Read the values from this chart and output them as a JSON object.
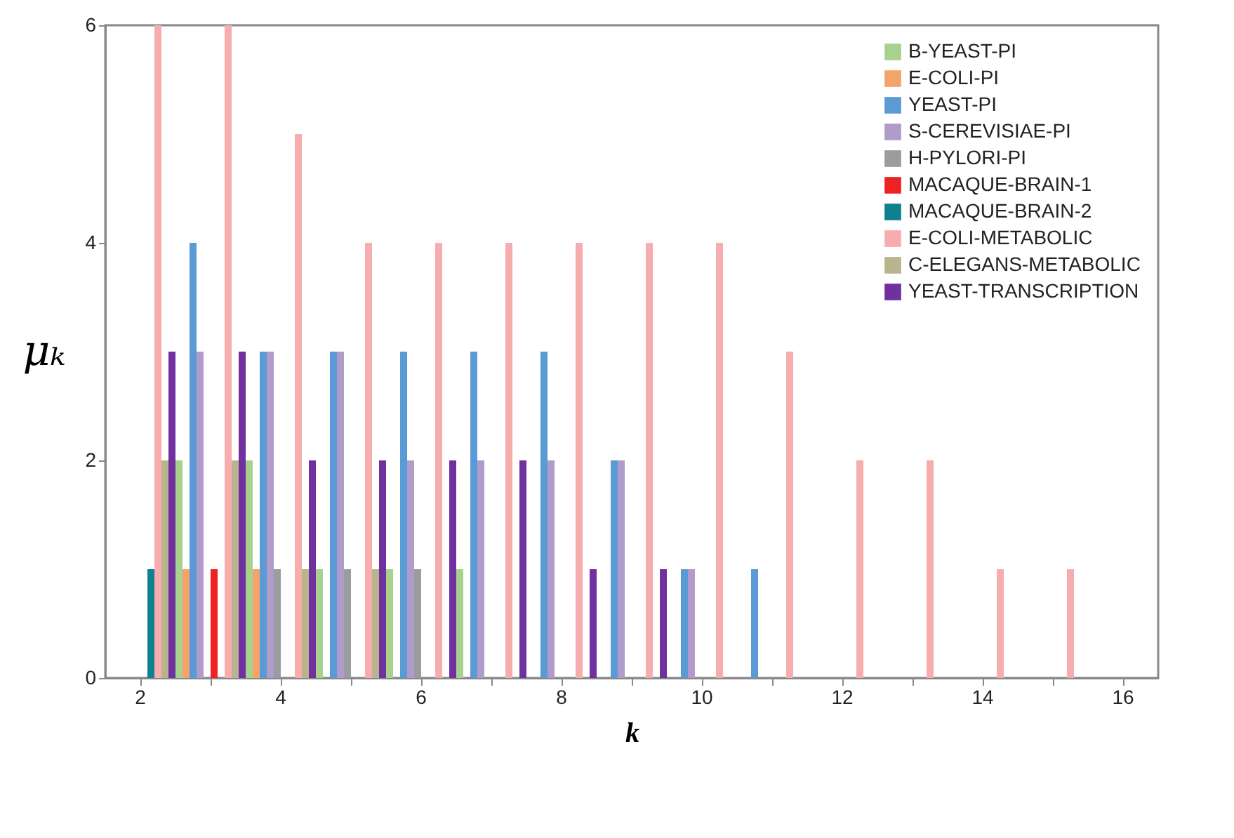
{
  "chart_data": {
    "type": "bar",
    "xlabel": "k",
    "ylabel": "μₖ",
    "categories": [
      "2",
      null,
      "4",
      null,
      "6",
      null,
      "8",
      null,
      "10",
      null,
      "12",
      null,
      "14",
      null,
      "16"
    ],
    "ylim": [
      0,
      6
    ],
    "yticks": [
      0,
      2,
      4,
      6
    ],
    "grid": false,
    "legend": "top right",
    "series": [
      {
        "name": "B-YEAST-PI",
        "color": "#a9d18e",
        "values": [
          null,
          2,
          2,
          1,
          1,
          1,
          null,
          null,
          null,
          null,
          null,
          null,
          null,
          null,
          null
        ]
      },
      {
        "name": "E-COLI-PI",
        "color": "#f4a46a",
        "values": [
          null,
          1,
          1,
          null,
          null,
          null,
          null,
          null,
          null,
          null,
          null,
          null,
          null,
          null,
          null
        ]
      },
      {
        "name": "YEAST-PI",
        "color": "#5b9bd5",
        "values": [
          null,
          4,
          3,
          3,
          3,
          3,
          3,
          2,
          1,
          1,
          null,
          null,
          null,
          null,
          null
        ]
      },
      {
        "name": "S-CEREVISIAE-PI",
        "color": "#b09bcb",
        "values": [
          null,
          3,
          3,
          3,
          2,
          2,
          2,
          2,
          1,
          null,
          null,
          null,
          null,
          null,
          null
        ]
      },
      {
        "name": "H-PYLORI-PI",
        "color": "#9a9c9e",
        "values": [
          null,
          null,
          1,
          1,
          1,
          null,
          null,
          null,
          null,
          null,
          null,
          null,
          null,
          null,
          null
        ]
      },
      {
        "name": "MACAQUE-BRAIN-1",
        "color": "#ee2222",
        "values": [
          null,
          1,
          null,
          null,
          null,
          null,
          null,
          null,
          null,
          null,
          null,
          null,
          null,
          null,
          null
        ]
      },
      {
        "name": "MACAQUE-BRAIN-2",
        "color": "#0f8090",
        "values": [
          1,
          null,
          null,
          null,
          null,
          null,
          null,
          null,
          null,
          null,
          null,
          null,
          null,
          null,
          null
        ]
      },
      {
        "name": "E-COLI-METABOLIC",
        "color": "#f7adad",
        "values": [
          6,
          6,
          5,
          4,
          4,
          4,
          4,
          4,
          4,
          3,
          2,
          2,
          1,
          1,
          null
        ]
      },
      {
        "name": "C-ELEGANS-METABOLIC",
        "color": "#b8b48e",
        "values": [
          2,
          2,
          1,
          1,
          null,
          null,
          null,
          null,
          null,
          null,
          null,
          null,
          null,
          null,
          null
        ]
      },
      {
        "name": "YEAST-TRANSCRIPTION",
        "color": "#7030a0",
        "values": [
          3,
          3,
          2,
          2,
          2,
          2,
          1,
          1,
          null,
          null,
          null,
          null,
          null,
          null,
          null
        ]
      }
    ]
  }
}
